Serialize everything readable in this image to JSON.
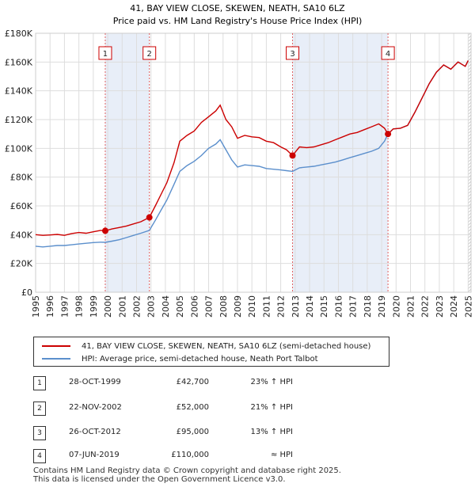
{
  "chart_data": {
    "type": "line",
    "title": "41, BAY VIEW CLOSE, SKEWEN, NEATH, SA10 6LZ",
    "subtitle": "Price paid vs. HM Land Registry's House Price Index (HPI)",
    "xlim": [
      1995,
      2025.2
    ],
    "ylim": [
      0,
      180000
    ],
    "x_ticks": [
      "1995",
      "1996",
      "1997",
      "1998",
      "1999",
      "2000",
      "2001",
      "2002",
      "2003",
      "2004",
      "2005",
      "2006",
      "2007",
      "2008",
      "2009",
      "2010",
      "2011",
      "2012",
      "2013",
      "2014",
      "2015",
      "2016",
      "2017",
      "2018",
      "2019",
      "2020",
      "2021",
      "2022",
      "2023",
      "2024",
      "2025"
    ],
    "y_ticks": [
      "£0",
      "£20K",
      "£40K",
      "£60K",
      "£80K",
      "£100K",
      "£120K",
      "£140K",
      "£160K",
      "£180K"
    ],
    "y_tick_values": [
      0,
      20000,
      40000,
      60000,
      80000,
      100000,
      120000,
      140000,
      160000,
      180000
    ],
    "series": [
      {
        "name": "41, BAY VIEW CLOSE, SKEWEN, NEATH, SA10 6LZ (semi-detached house)",
        "color": "#cc0000",
        "x": [
          1995.0,
          1995.5,
          1996.0,
          1996.5,
          1997.0,
          1997.5,
          1998.0,
          1998.5,
          1999.0,
          1999.5,
          1999.83,
          2000.3,
          2000.8,
          2001.3,
          2001.8,
          2002.3,
          2002.89,
          2003.3,
          2003.7,
          2004.1,
          2004.6,
          2005.0,
          2005.5,
          2006.0,
          2006.5,
          2007.0,
          2007.5,
          2007.8,
          2008.2,
          2008.6,
          2009.0,
          2009.5,
          2010.0,
          2010.5,
          2011.0,
          2011.5,
          2012.0,
          2012.4,
          2012.82,
          2013.3,
          2013.8,
          2014.3,
          2014.8,
          2015.3,
          2015.8,
          2016.3,
          2016.8,
          2017.3,
          2017.8,
          2018.3,
          2018.8,
          2019.2,
          2019.44,
          2019.8,
          2020.3,
          2020.8,
          2021.3,
          2021.8,
          2022.3,
          2022.8,
          2023.3,
          2023.8,
          2024.3,
          2024.8,
          2025.0
        ],
        "y": [
          40000,
          39500,
          39800,
          40200,
          39500,
          40800,
          41500,
          41000,
          42000,
          43000,
          42700,
          44000,
          45000,
          46000,
          47500,
          49000,
          52000,
          60000,
          68000,
          76000,
          90000,
          105000,
          109000,
          112000,
          118000,
          122000,
          126000,
          130000,
          120000,
          115000,
          107000,
          109000,
          108000,
          107500,
          105000,
          104000,
          101000,
          99000,
          95000,
          101000,
          100500,
          101000,
          102500,
          104000,
          106000,
          108000,
          110000,
          111000,
          113000,
          115000,
          117000,
          114000,
          110000,
          113500,
          114000,
          116000,
          125000,
          135000,
          145000,
          153000,
          158000,
          155000,
          160000,
          157000,
          161000
        ]
      },
      {
        "name": "HPI: Average price, semi-detached house, Neath Port Talbot",
        "color": "#5b8fcc",
        "x": [
          1995.0,
          1995.5,
          1996.0,
          1996.5,
          1997.0,
          1997.5,
          1998.0,
          1998.5,
          1999.0,
          1999.5,
          1999.83,
          2000.3,
          2000.8,
          2001.3,
          2001.8,
          2002.3,
          2002.89,
          2003.3,
          2003.7,
          2004.1,
          2004.6,
          2005.0,
          2005.5,
          2006.0,
          2006.5,
          2007.0,
          2007.5,
          2007.8,
          2008.2,
          2008.6,
          2009.0,
          2009.5,
          2010.0,
          2010.5,
          2011.0,
          2011.5,
          2012.0,
          2012.4,
          2012.82,
          2013.3,
          2013.8,
          2014.3,
          2014.8,
          2015.3,
          2015.8,
          2016.3,
          2016.8,
          2017.3,
          2017.8,
          2018.3,
          2018.8,
          2019.2,
          2019.44,
          2019.8,
          2020.3,
          2020.8,
          2021.3,
          2021.8,
          2022.3,
          2022.8,
          2023.3,
          2023.8,
          2024.3,
          2024.8,
          2025.0
        ],
        "y": [
          32000,
          31500,
          32000,
          32500,
          32500,
          33000,
          33500,
          34000,
          34500,
          34800,
          34700,
          35500,
          36500,
          38000,
          39500,
          41000,
          43000,
          50000,
          57000,
          64000,
          75000,
          84000,
          88000,
          91000,
          95000,
          100000,
          103000,
          106000,
          99000,
          92000,
          87000,
          88500,
          88000,
          87500,
          86000,
          85500,
          85000,
          84500,
          84000,
          86500,
          87000,
          87500,
          88500,
          89500,
          90500,
          92000,
          93500,
          95000,
          96500,
          98000,
          100000,
          105000,
          110000,
          113500,
          114000,
          116000,
          125000,
          135000,
          145000,
          153000,
          158000,
          155000,
          160000,
          157000,
          161000
        ]
      }
    ],
    "sales": [
      {
        "label": "1",
        "x": 1999.83,
        "y": 42700
      },
      {
        "label": "2",
        "x": 2002.89,
        "y": 52000
      },
      {
        "label": "3",
        "x": 2012.82,
        "y": 95000
      },
      {
        "label": "4",
        "x": 2019.44,
        "y": 110000
      }
    ],
    "shaded_ranges": [
      [
        1999.83,
        2002.89
      ],
      [
        2012.82,
        2019.44
      ]
    ]
  },
  "legend": {
    "property": "41, BAY VIEW CLOSE, SKEWEN, NEATH, SA10 6LZ (semi-detached house)",
    "hpi": "HPI: Average price, semi-detached house, Neath Port Talbot"
  },
  "sales_table": [
    {
      "num": "1",
      "date": "28-OCT-1999",
      "price": "£42,700",
      "hpi": "23% ↑ HPI"
    },
    {
      "num": "2",
      "date": "22-NOV-2002",
      "price": "£52,000",
      "hpi": "21% ↑ HPI"
    },
    {
      "num": "3",
      "date": "26-OCT-2012",
      "price": "£95,000",
      "hpi": "13% ↑ HPI"
    },
    {
      "num": "4",
      "date": "07-JUN-2019",
      "price": "£110,000",
      "hpi": "≈ HPI"
    }
  ],
  "footer": {
    "line1": "Contains HM Land Registry data © Crown copyright and database right 2025.",
    "line2": "This data is licensed under the Open Government Licence v3.0."
  }
}
